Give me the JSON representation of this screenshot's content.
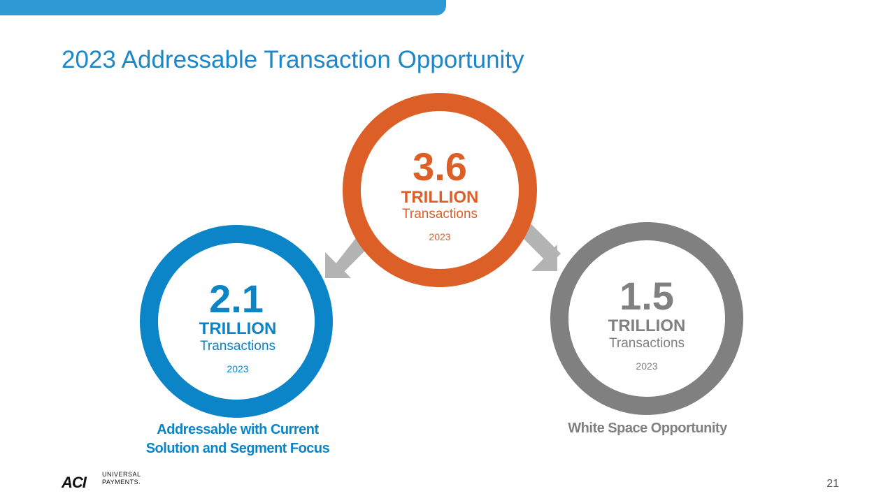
{
  "title": "2023 Addressable Transaction Opportunity",
  "colors": {
    "accent_blue": "#0b84c8",
    "orange": "#dc5f27",
    "gray": "#808080",
    "arrow": "#b3b3b3"
  },
  "circles": {
    "total": {
      "value": "3.6",
      "unit": "TRILLION",
      "sub": "Transactions",
      "year": "2023"
    },
    "addressable": {
      "value": "2.1",
      "unit": "TRILLION",
      "sub": "Transactions",
      "year": "2023",
      "caption_line1": "Addressable with Current",
      "caption_line2": "Solution and Segment Focus"
    },
    "white_space": {
      "value": "1.5",
      "unit": "TRILLION",
      "sub": "Transactions",
      "year": "2023",
      "caption": "White Space Opportunity"
    }
  },
  "logo": {
    "mark": "ACI",
    "line1": "UNIVERSAL",
    "line2": "PAYMENTS."
  },
  "page_number": "21"
}
